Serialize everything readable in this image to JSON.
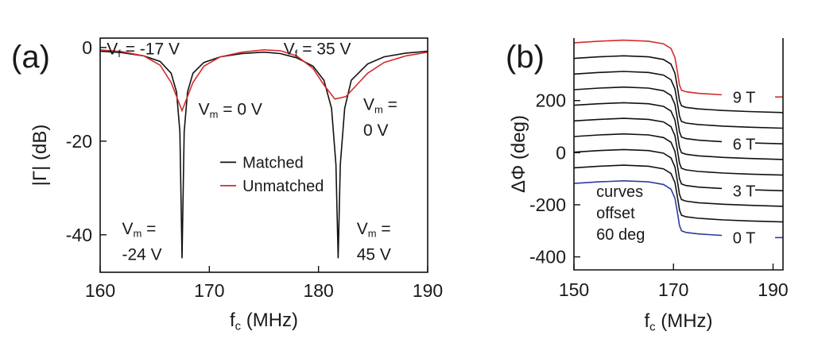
{
  "chart_data": [
    {
      "panel_label": "(a)",
      "type": "line",
      "xlabel": "f",
      "xlabel_sub": "c",
      "xlabel_unit": " (MHz)",
      "ylabel": "|Γ| (dB)",
      "xlim": [
        160,
        190
      ],
      "ylim": [
        -48,
        2
      ],
      "xticks": [
        160,
        170,
        180,
        190
      ],
      "yticks": [
        0,
        -20,
        -40
      ],
      "grid": false,
      "legend_position": "center",
      "series": [
        {
          "name": "Matched",
          "color": "#111111",
          "points": [
            [
              160,
              -0.8
            ],
            [
              162,
              -1.1
            ],
            [
              164,
              -1.8
            ],
            [
              165.5,
              -3.0
            ],
            [
              166.5,
              -5.5
            ],
            [
              167,
              -9.5
            ],
            [
              167.3,
              -18
            ],
            [
              167.5,
              -45
            ],
            [
              167.7,
              -18
            ],
            [
              168,
              -9.5
            ],
            [
              168.5,
              -5.5
            ],
            [
              169.5,
              -3.2
            ],
            [
              171,
              -2.0
            ],
            [
              173,
              -1.3
            ],
            [
              175,
              -1.0
            ],
            [
              176.5,
              -1.3
            ],
            [
              178,
              -2.2
            ],
            [
              179.5,
              -4
            ],
            [
              180.5,
              -7
            ],
            [
              181.2,
              -13
            ],
            [
              181.6,
              -25
            ],
            [
              181.8,
              -45
            ],
            [
              182,
              -25
            ],
            [
              182.4,
              -13
            ],
            [
              183,
              -7
            ],
            [
              184.5,
              -3.5
            ],
            [
              186,
              -2.0
            ],
            [
              188,
              -1.2
            ],
            [
              190,
              -0.8
            ]
          ]
        },
        {
          "name": "Unmatched",
          "color": "#d62b2b",
          "points": [
            [
              160,
              -0.5
            ],
            [
              162,
              -0.9
            ],
            [
              164,
              -1.8
            ],
            [
              165.5,
              -3.8
            ],
            [
              166.5,
              -7.5
            ],
            [
              167.5,
              -13.5
            ],
            [
              168.5,
              -7.5
            ],
            [
              169.5,
              -4
            ],
            [
              171,
              -2.0
            ],
            [
              173,
              -1.0
            ],
            [
              175,
              -0.5
            ],
            [
              176.5,
              -0.7
            ],
            [
              178,
              -1.8
            ],
            [
              179.5,
              -4.5
            ],
            [
              180.5,
              -8
            ],
            [
              181.5,
              -11
            ],
            [
              182.5,
              -10.5
            ],
            [
              183.5,
              -8
            ],
            [
              184.5,
              -5.5
            ],
            [
              186,
              -3.2
            ],
            [
              188,
              -1.8
            ],
            [
              190,
              -1.0
            ]
          ]
        }
      ],
      "annotations": [
        {
          "text": "V",
          "sub": "f",
          "tail": " = -17 V",
          "x": 160.6,
          "y": -0.1
        },
        {
          "text": "V",
          "sub": "f",
          "tail": " = 35 V",
          "x": 176.8,
          "y": -0.1
        },
        {
          "text": "V",
          "sub": "m",
          "tail": " = 0 V",
          "x": 169.0,
          "y": -13.0
        },
        {
          "text": "V",
          "sub": "m",
          "tail": " =",
          "x": 184.1,
          "y": -12.0
        },
        {
          "text": "0 V",
          "sub": "",
          "tail": "",
          "x": 184.1,
          "y": -17.5
        },
        {
          "text": "V",
          "sub": "m",
          "tail": " =",
          "x": 162.0,
          "y": -38.5
        },
        {
          "text": "-24 V",
          "sub": "",
          "tail": "",
          "x": 162.0,
          "y": -44.0
        },
        {
          "text": "V",
          "sub": "m",
          "tail": " =",
          "x": 183.5,
          "y": -38.5
        },
        {
          "text": "45 V",
          "sub": "",
          "tail": "",
          "x": 183.5,
          "y": -44.0
        }
      ]
    },
    {
      "panel_label": "(b)",
      "type": "line",
      "xlabel": "f",
      "xlabel_sub": "c",
      "xlabel_unit": " (MHz)",
      "ylabel": "ΔΦ (deg)",
      "xlim": [
        150,
        192
      ],
      "ylim": [
        -450,
        440
      ],
      "xticks": [
        150,
        170,
        190
      ],
      "yticks": [
        200,
        0,
        -200,
        -400
      ],
      "grid": false,
      "offset_note": [
        "curves",
        "offset",
        "60 deg"
      ],
      "base_curve": [
        [
          150,
          -118
        ],
        [
          155,
          -112
        ],
        [
          160,
          -108
        ],
        [
          165,
          -112
        ],
        [
          168,
          -122
        ],
        [
          169.5,
          -140
        ],
        [
          170.3,
          -175
        ],
        [
          170.8,
          -230
        ],
        [
          171.2,
          -280
        ],
        [
          171.6,
          -300
        ],
        [
          172.5,
          -306
        ],
        [
          175,
          -312
        ],
        [
          180,
          -318
        ],
        [
          185,
          -322
        ],
        [
          192,
          -326
        ]
      ],
      "curve_offset": 60,
      "curve_count": 10,
      "curve_colors": [
        "#2c3e9e",
        "#111111",
        "#111111",
        "#111111",
        "#111111",
        "#111111",
        "#111111",
        "#111111",
        "#111111",
        "#d62b2b"
      ],
      "curve_end_x": [
        180,
        192,
        192,
        192,
        192,
        192,
        192,
        192,
        192,
        180
      ],
      "labels": [
        {
          "text": "9 T",
          "curve": 9
        },
        {
          "text": "6 T",
          "curve": 6
        },
        {
          "text": "3 T",
          "curve": 3
        },
        {
          "text": "0 T",
          "curve": 0
        }
      ],
      "label_x": 184.5,
      "label_tick_curves": [
        0,
        1,
        2,
        3,
        4,
        5,
        6,
        7,
        8,
        9
      ]
    }
  ]
}
